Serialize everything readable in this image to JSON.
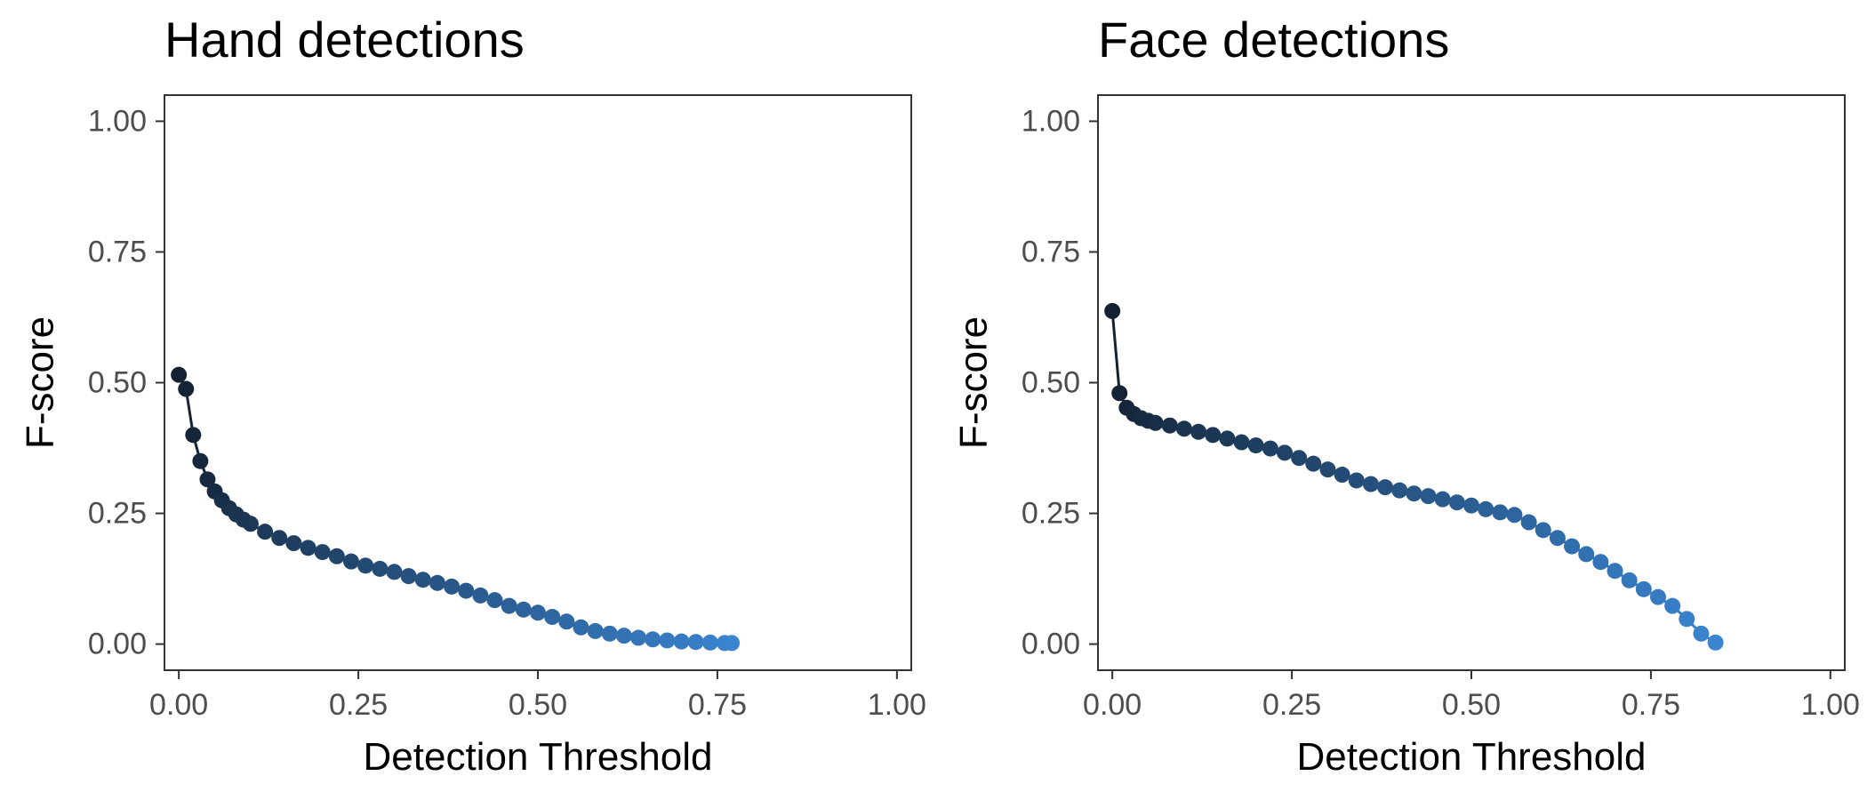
{
  "chart_data": [
    {
      "type": "line",
      "title": "Hand detections",
      "xlabel": "Detection Threshold",
      "ylabel": "F-score",
      "xlim": [
        -0.02,
        1.02
      ],
      "ylim": [
        -0.05,
        1.05
      ],
      "x_ticks": [
        "0.00",
        "0.25",
        "0.50",
        "0.75",
        "1.00"
      ],
      "y_ticks": [
        "0.00",
        "0.25",
        "0.50",
        "0.75",
        "1.00"
      ],
      "grid": false,
      "legend": "none",
      "color_gradient": [
        "#132132",
        "#3a84d0"
      ],
      "series": [
        {
          "x": [
            0.0,
            0.01,
            0.02,
            0.03,
            0.04,
            0.05,
            0.06,
            0.07,
            0.08,
            0.09,
            0.1,
            0.12,
            0.14,
            0.16,
            0.18,
            0.2,
            0.22,
            0.24,
            0.26,
            0.28,
            0.3,
            0.32,
            0.34,
            0.36,
            0.38,
            0.4,
            0.42,
            0.44,
            0.46,
            0.48,
            0.5,
            0.52,
            0.54,
            0.56,
            0.58,
            0.6,
            0.62,
            0.64,
            0.66,
            0.68,
            0.7,
            0.72,
            0.74,
            0.76,
            0.77
          ],
          "y": [
            0.515,
            0.488,
            0.4,
            0.35,
            0.315,
            0.292,
            0.275,
            0.26,
            0.248,
            0.238,
            0.23,
            0.215,
            0.203,
            0.193,
            0.184,
            0.176,
            0.168,
            0.158,
            0.15,
            0.144,
            0.138,
            0.13,
            0.123,
            0.117,
            0.11,
            0.102,
            0.093,
            0.084,
            0.073,
            0.066,
            0.06,
            0.052,
            0.043,
            0.032,
            0.025,
            0.02,
            0.016,
            0.012,
            0.009,
            0.007,
            0.005,
            0.004,
            0.003,
            0.002,
            0.002
          ]
        }
      ]
    },
    {
      "type": "line",
      "title": "Face detections",
      "xlabel": "Detection Threshold",
      "ylabel": "F-score",
      "xlim": [
        -0.02,
        1.02
      ],
      "ylim": [
        -0.05,
        1.05
      ],
      "x_ticks": [
        "0.00",
        "0.25",
        "0.50",
        "0.75",
        "1.00"
      ],
      "y_ticks": [
        "0.00",
        "0.25",
        "0.50",
        "0.75",
        "1.00"
      ],
      "grid": false,
      "legend": "none",
      "color_gradient": [
        "#132132",
        "#3a84d0"
      ],
      "series": [
        {
          "x": [
            0.0,
            0.01,
            0.02,
            0.03,
            0.04,
            0.05,
            0.06,
            0.08,
            0.1,
            0.12,
            0.14,
            0.16,
            0.18,
            0.2,
            0.22,
            0.24,
            0.26,
            0.28,
            0.3,
            0.32,
            0.34,
            0.36,
            0.38,
            0.4,
            0.42,
            0.44,
            0.46,
            0.48,
            0.5,
            0.52,
            0.54,
            0.56,
            0.58,
            0.6,
            0.62,
            0.64,
            0.66,
            0.68,
            0.7,
            0.72,
            0.74,
            0.76,
            0.78,
            0.8,
            0.82,
            0.84
          ],
          "y": [
            0.637,
            0.48,
            0.452,
            0.44,
            0.432,
            0.427,
            0.423,
            0.418,
            0.412,
            0.406,
            0.4,
            0.393,
            0.386,
            0.38,
            0.374,
            0.366,
            0.356,
            0.345,
            0.334,
            0.324,
            0.313,
            0.306,
            0.3,
            0.294,
            0.288,
            0.283,
            0.277,
            0.271,
            0.265,
            0.258,
            0.252,
            0.247,
            0.233,
            0.218,
            0.203,
            0.187,
            0.172,
            0.157,
            0.14,
            0.122,
            0.105,
            0.09,
            0.073,
            0.048,
            0.02,
            0.003
          ]
        }
      ]
    }
  ]
}
